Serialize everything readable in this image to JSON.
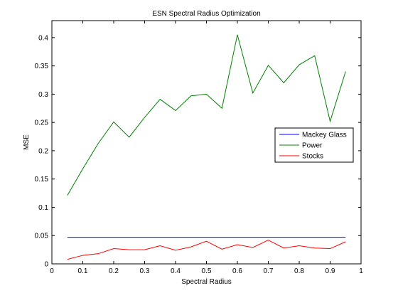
{
  "chart_data": {
    "type": "line",
    "title": "ESN Spectral Radius Optimization",
    "xlabel": "Spectral Radius",
    "ylabel": "MSE",
    "xlim": [
      0,
      1
    ],
    "ylim": [
      0,
      0.43
    ],
    "grid": false,
    "legend_position": "center-right",
    "x_ticks": [
      0,
      0.1,
      0.2,
      0.3,
      0.4,
      0.5,
      0.6,
      0.7,
      0.8,
      0.9,
      1
    ],
    "x_tick_labels": [
      "0",
      "0.1",
      "0.2",
      "0.3",
      "0.4",
      "0.5",
      "0.6",
      "0.7",
      "0.8",
      "0.9",
      "1"
    ],
    "y_ticks": [
      0,
      0.05,
      0.1,
      0.15,
      0.2,
      0.25,
      0.3,
      0.35,
      0.4
    ],
    "y_tick_labels": [
      "0",
      "0.05",
      "0.1",
      "0.15",
      "0.2",
      "0.25",
      "0.3",
      "0.35",
      "0.4"
    ],
    "x": [
      0.05,
      0.1,
      0.15,
      0.2,
      0.25,
      0.3,
      0.35,
      0.4,
      0.45,
      0.5,
      0.55,
      0.6,
      0.65,
      0.7,
      0.75,
      0.8,
      0.85,
      0.9,
      0.95
    ],
    "series": [
      {
        "name": "Mackey Glass",
        "color": "#0000ff",
        "values": [
          0.047,
          0.047,
          0.047,
          0.047,
          0.047,
          0.047,
          0.047,
          0.047,
          0.047,
          0.047,
          0.047,
          0.047,
          0.047,
          0.047,
          0.047,
          0.047,
          0.047,
          0.047,
          0.047
        ]
      },
      {
        "name": "Power",
        "color": "#008000",
        "values": [
          0.121,
          0.168,
          0.213,
          0.251,
          0.224,
          0.259,
          0.291,
          0.271,
          0.297,
          0.3,
          0.275,
          0.405,
          0.302,
          0.351,
          0.32,
          0.352,
          0.368,
          0.252,
          0.34
        ]
      },
      {
        "name": "Stocks",
        "color": "#ff0000",
        "values": [
          0.008,
          0.015,
          0.018,
          0.027,
          0.025,
          0.025,
          0.032,
          0.024,
          0.03,
          0.04,
          0.026,
          0.034,
          0.029,
          0.042,
          0.028,
          0.032,
          0.028,
          0.027,
          0.039
        ]
      }
    ]
  }
}
